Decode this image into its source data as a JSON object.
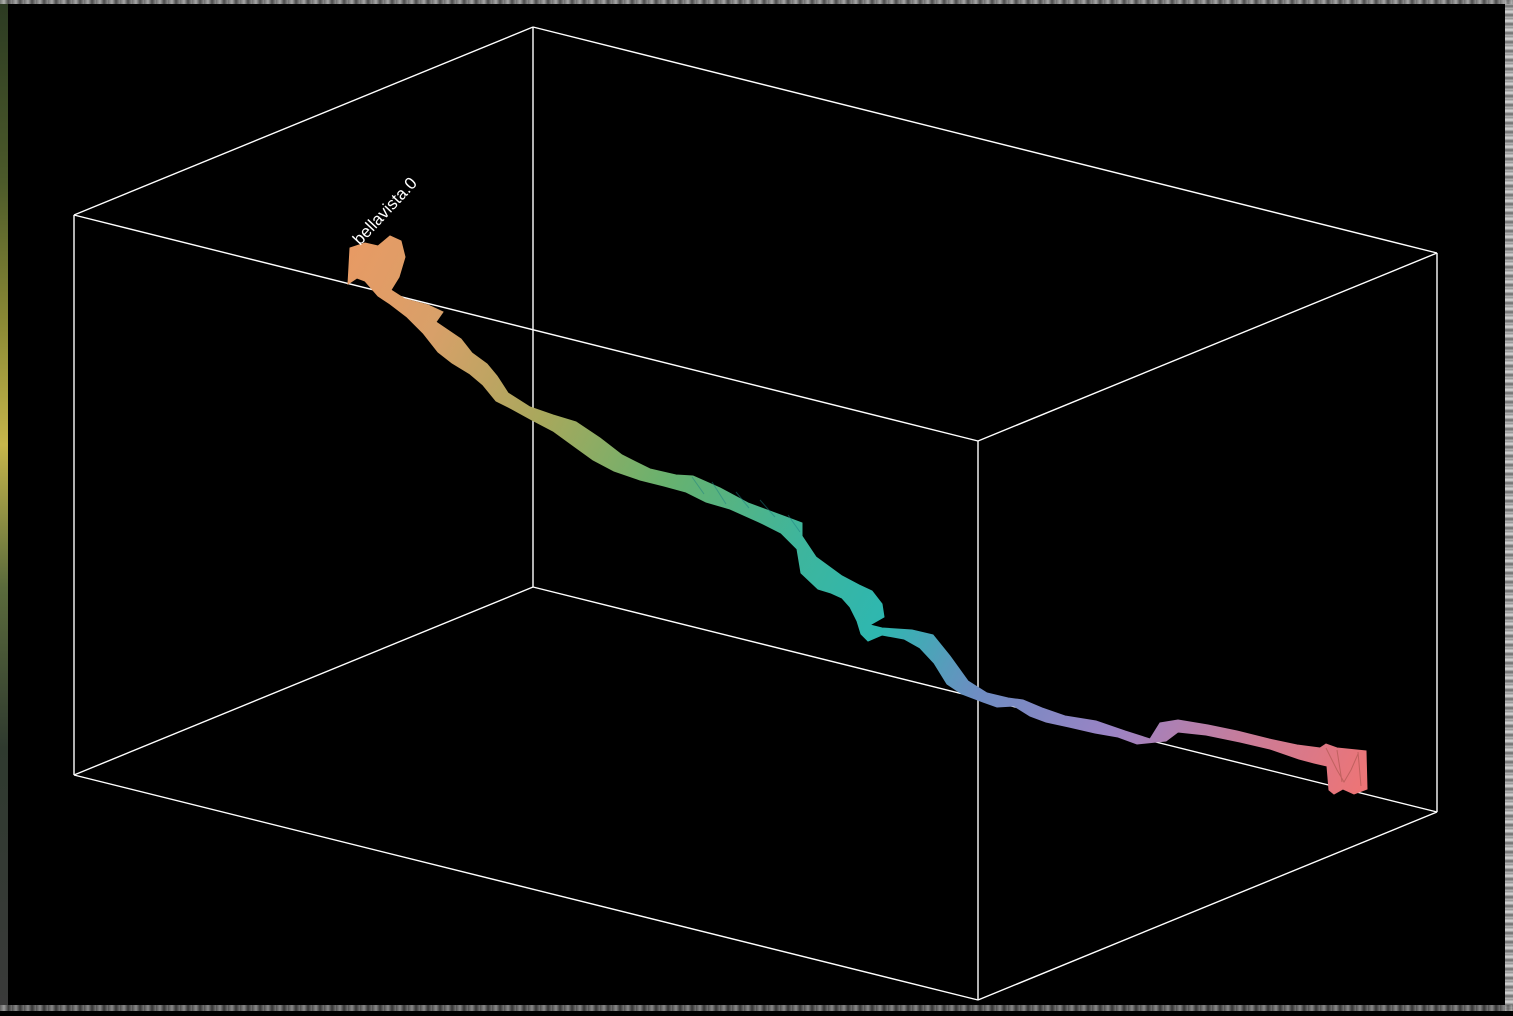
{
  "viewer": {
    "background": "#000000",
    "box_color": "#ffffff",
    "station_label": "bellavista.0"
  },
  "survey": {
    "gradient_colors": [
      "#e89a64",
      "#d8a069",
      "#a7a85c",
      "#67b26f",
      "#3fb59b",
      "#2eb7b0",
      "#6e8dc2",
      "#9b83c4",
      "#cf7b93",
      "#ef7474"
    ]
  }
}
